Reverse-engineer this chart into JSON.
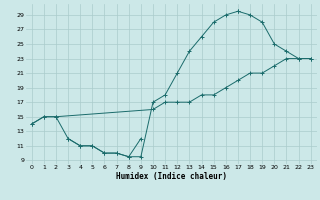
{
  "xlabel": "Humidex (Indice chaleur)",
  "bg_color": "#cce8e8",
  "grid_color": "#aacccc",
  "line_color": "#1a6b6b",
  "xlim": [
    -0.5,
    23.5
  ],
  "ylim": [
    8.5,
    30.5
  ],
  "xticks": [
    0,
    1,
    2,
    3,
    4,
    5,
    6,
    7,
    8,
    9,
    10,
    11,
    12,
    13,
    14,
    15,
    16,
    17,
    18,
    19,
    20,
    21,
    22,
    23
  ],
  "yticks": [
    9,
    11,
    13,
    15,
    17,
    19,
    21,
    23,
    25,
    27,
    29
  ],
  "line1_x": [
    0,
    1,
    2,
    10,
    11,
    12,
    13,
    14,
    15,
    16,
    17,
    18,
    19,
    20,
    21,
    22,
    23
  ],
  "line1_y": [
    14,
    15,
    15,
    16,
    17,
    17,
    17,
    18,
    18,
    19,
    20,
    21,
    21,
    22,
    23,
    23,
    23
  ],
  "line2_x": [
    0,
    1,
    2,
    3,
    4,
    5,
    6,
    7,
    8,
    9,
    10,
    11,
    12,
    13,
    14,
    15,
    16,
    17
  ],
  "line2_y": [
    14,
    15,
    15,
    12,
    11,
    11,
    10,
    10,
    9.5,
    9.5,
    17,
    18,
    21,
    24,
    26,
    28,
    29,
    29.5
  ],
  "line3_x": [
    17,
    18,
    19,
    20,
    21,
    22,
    23
  ],
  "line3_y": [
    29.5,
    29,
    28,
    25,
    24,
    23,
    23
  ],
  "line4_x": [
    3,
    4,
    5,
    6,
    7,
    8,
    9
  ],
  "line4_y": [
    12,
    11,
    11,
    10,
    10,
    9.5,
    12
  ]
}
